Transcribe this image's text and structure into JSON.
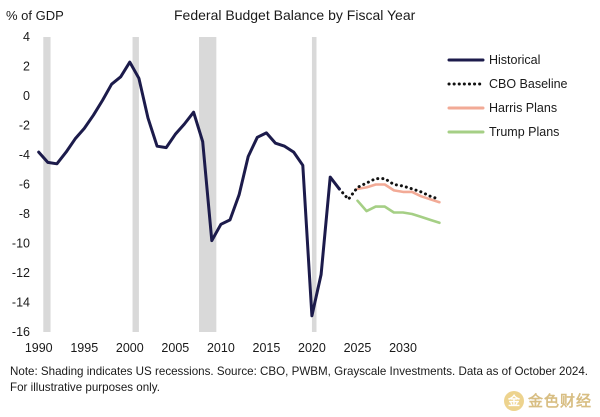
{
  "chart_data": {
    "type": "line",
    "title": "Federal Budget Balance by Fiscal Year",
    "ylabel": "% of GDP",
    "xlabel": "",
    "xlim": [
      1989.7,
      2034.5
    ],
    "ylim": [
      -16,
      4
    ],
    "x_ticks": [
      1990,
      1995,
      2000,
      2005,
      2010,
      2015,
      2020,
      2025,
      2030
    ],
    "y_ticks": [
      4,
      2,
      0,
      -2,
      -4,
      -6,
      -8,
      -10,
      -12,
      -14,
      -16
    ],
    "recessions": [
      [
        1990.5,
        1991.3
      ],
      [
        2000.3,
        2001.0
      ],
      [
        2007.6,
        2009.5
      ],
      [
        2020.0,
        2020.5
      ]
    ],
    "legend_position": "top-right",
    "series": [
      {
        "name": "Historical",
        "color": "#1c1b4b",
        "style": "solid",
        "x": [
          1990,
          1991,
          1992,
          1993,
          1994,
          1995,
          1996,
          1997,
          1998,
          1999,
          2000,
          2001,
          2002,
          2003,
          2004,
          2005,
          2006,
          2007,
          2008,
          2009,
          2010,
          2011,
          2012,
          2013,
          2014,
          2015,
          2016,
          2017,
          2018,
          2019,
          2020,
          2021,
          2022,
          2023
        ],
        "y": [
          -3.8,
          -4.5,
          -4.6,
          -3.8,
          -2.9,
          -2.2,
          -1.3,
          -0.3,
          0.8,
          1.3,
          2.3,
          1.2,
          -1.5,
          -3.4,
          -3.5,
          -2.6,
          -1.9,
          -1.1,
          -3.1,
          -9.8,
          -8.7,
          -8.4,
          -6.7,
          -4.1,
          -2.8,
          -2.5,
          -3.2,
          -3.4,
          -3.8,
          -4.7,
          -14.9,
          -12.1,
          -5.5,
          -6.3
        ]
      },
      {
        "name": "CBO Baseline",
        "color": "#111111",
        "style": "dotted",
        "x": [
          2023,
          2024,
          2025,
          2026,
          2027,
          2028,
          2029,
          2030,
          2031,
          2032,
          2033,
          2034
        ],
        "y": [
          -6.3,
          -7.0,
          -6.2,
          -5.9,
          -5.6,
          -5.6,
          -6.0,
          -6.1,
          -6.3,
          -6.5,
          -6.8,
          -7.0
        ]
      },
      {
        "name": "Harris Plans",
        "color": "#f2aa96",
        "style": "solid",
        "x": [
          2025,
          2026,
          2027,
          2028,
          2029,
          2030,
          2031,
          2032,
          2033,
          2034
        ],
        "y": [
          -6.3,
          -6.2,
          -6.0,
          -6.0,
          -6.4,
          -6.5,
          -6.5,
          -6.8,
          -7.0,
          -7.2
        ]
      },
      {
        "name": "Trump Plans",
        "color": "#a5cf85",
        "style": "solid",
        "x": [
          2025,
          2026,
          2027,
          2028,
          2029,
          2030,
          2031,
          2032,
          2033,
          2034
        ],
        "y": [
          -7.1,
          -7.8,
          -7.5,
          -7.5,
          -7.9,
          -7.9,
          -8.0,
          -8.2,
          -8.4,
          -8.6
        ]
      }
    ]
  },
  "note": "Note: Shading indicates US recessions. Source: CBO, PWBM, Grayscale Investments. Data as of October 2024. For illustrative purposes only.",
  "watermark": {
    "glyph": "金",
    "text": "金色财经"
  }
}
